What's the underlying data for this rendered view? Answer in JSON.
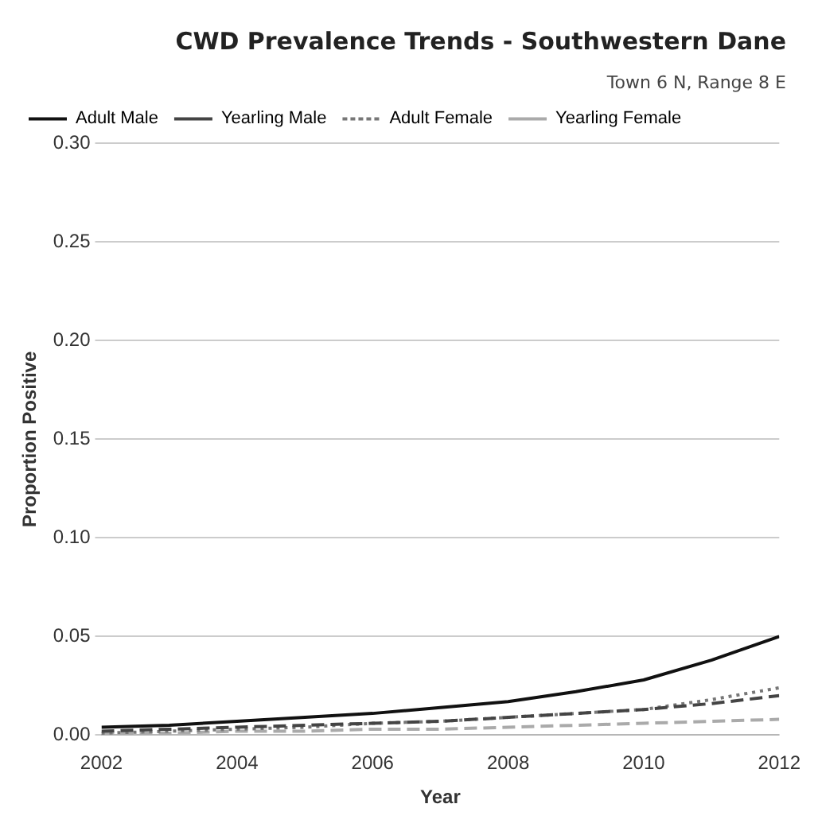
{
  "chart_data": {
    "type": "line",
    "title": "CWD Prevalence Trends - Southwestern Dane",
    "subtitle": "Town 6 N, Range 8 E",
    "xlabel": "Year",
    "ylabel": "Proportion Positive",
    "x": [
      2002,
      2003,
      2004,
      2005,
      2006,
      2007,
      2008,
      2009,
      2010,
      2011,
      2012
    ],
    "series": [
      {
        "name": "Adult Male",
        "color": "#111111",
        "line_style": "solid",
        "values": [
          0.004,
          0.005,
          0.007,
          0.009,
          0.011,
          0.014,
          0.017,
          0.022,
          0.028,
          0.038,
          0.05
        ]
      },
      {
        "name": "Yearling Male",
        "color": "#444444",
        "line_style": "dashed",
        "values": [
          0.002,
          0.003,
          0.004,
          0.005,
          0.006,
          0.007,
          0.009,
          0.011,
          0.013,
          0.016,
          0.02
        ]
      },
      {
        "name": "Adult Female",
        "color": "#777777",
        "line_style": "dotted",
        "values": [
          0.001,
          0.002,
          0.003,
          0.004,
          0.006,
          0.007,
          0.009,
          0.011,
          0.013,
          0.018,
          0.024
        ]
      },
      {
        "name": "Yearling Female",
        "color": "#aaaaaa",
        "line_style": "dashed",
        "values": [
          0.001,
          0.001,
          0.002,
          0.002,
          0.003,
          0.003,
          0.004,
          0.005,
          0.006,
          0.007,
          0.008
        ]
      }
    ],
    "xlim": [
      2002,
      2012
    ],
    "xticks": [
      2002,
      2004,
      2006,
      2008,
      2010,
      2012
    ],
    "ylim": [
      0,
      0.3
    ],
    "yticks": [
      {
        "value": 0,
        "label": "0.00"
      },
      {
        "value": 0.05,
        "label": "0.05"
      },
      {
        "value": 0.1,
        "label": "0.10"
      },
      {
        "value": 0.15,
        "label": "0.15"
      },
      {
        "value": 0.2,
        "label": "0.20"
      },
      {
        "value": 0.25,
        "label": "0.25"
      },
      {
        "value": 0.3,
        "label": "0.30"
      }
    ],
    "grid": "y",
    "legend": "top left",
    "marker": "none"
  }
}
